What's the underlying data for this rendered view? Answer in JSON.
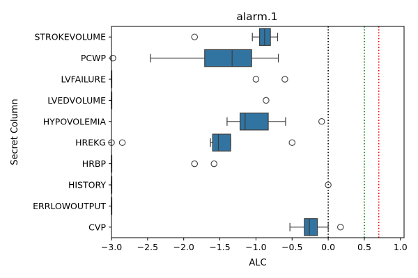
{
  "chart_data": {
    "type": "boxplot",
    "orientation": "horizontal",
    "title": "alarm.1",
    "xlabel": "ALC",
    "ylabel": "Secret Column",
    "xlim": [
      -3.0,
      1.05
    ],
    "xticks": [
      -3.0,
      -2.5,
      -2.0,
      -1.5,
      -1.0,
      -0.5,
      0.0,
      0.5,
      1.0
    ],
    "xtick_labels": [
      "−3.0",
      "−2.5",
      "−2.0",
      "−1.5",
      "−1.0",
      "−0.5",
      "0.0",
      "0.5",
      "1.0"
    ],
    "box_color": "#3274a1",
    "categories": [
      "STROKEVOLUME",
      "PCWP",
      "LVFAILURE",
      "LVEDVOLUME",
      "HYPOVOLEMIA",
      "HREKG",
      "HRBP",
      "HISTORY",
      "ERRLOWOUTPUT",
      "CVP"
    ],
    "boxes": [
      {
        "category": "STROKEVOLUME",
        "whisker_low": -1.05,
        "q1": -0.95,
        "median": -0.88,
        "q3": -0.8,
        "whisker_high": -0.7,
        "outliers": [
          -1.85
        ]
      },
      {
        "category": "PCWP",
        "whisker_low": -2.46,
        "q1": -1.71,
        "median": -1.33,
        "q3": -1.06,
        "whisker_high": -0.69,
        "outliers": [
          -2.98
        ]
      },
      {
        "category": "LVFAILURE",
        "whisker_low": -3.0,
        "q1": -3.0,
        "median": -3.0,
        "q3": -3.0,
        "whisker_high": -3.0,
        "outliers": [
          -1.0,
          -0.6
        ]
      },
      {
        "category": "LVEDVOLUME",
        "whisker_low": -3.0,
        "q1": -3.0,
        "median": -3.0,
        "q3": -3.0,
        "whisker_high": -3.0,
        "outliers": [
          -0.86
        ]
      },
      {
        "category": "HYPOVOLEMIA",
        "whisker_low": -1.4,
        "q1": -1.22,
        "median": -1.15,
        "q3": -0.83,
        "whisker_high": -0.59,
        "outliers": [
          -0.09
        ]
      },
      {
        "category": "HREKG",
        "whisker_low": -1.63,
        "q1": -1.6,
        "median": -1.52,
        "q3": -1.35,
        "whisker_high": -1.35,
        "outliers": [
          -3.0,
          -2.85,
          -0.5
        ]
      },
      {
        "category": "HRBP",
        "whisker_low": -3.0,
        "q1": -3.0,
        "median": -3.0,
        "q3": -3.0,
        "whisker_high": -3.0,
        "outliers": [
          -1.85,
          -1.58
        ]
      },
      {
        "category": "HISTORY",
        "whisker_low": -3.0,
        "q1": -3.0,
        "median": -3.0,
        "q3": -3.0,
        "whisker_high": -3.0,
        "outliers": [
          0.0
        ]
      },
      {
        "category": "ERRLOWOUTPUT",
        "whisker_low": -3.0,
        "q1": -3.0,
        "median": -3.0,
        "q3": -3.0,
        "whisker_high": -3.0,
        "outliers": []
      },
      {
        "category": "CVP",
        "whisker_low": -0.53,
        "q1": -0.33,
        "median": -0.26,
        "q3": -0.15,
        "whisker_high": 0.0,
        "outliers": [
          0.17
        ]
      }
    ],
    "reference_lines": [
      {
        "x": 0.0,
        "color": "#000000",
        "style": "dotted"
      },
      {
        "x": 0.5,
        "color": "#008000",
        "style": "dotted"
      },
      {
        "x": 0.7,
        "color": "#ff0000",
        "style": "dotted"
      }
    ],
    "grid": false,
    "legend": "none"
  }
}
